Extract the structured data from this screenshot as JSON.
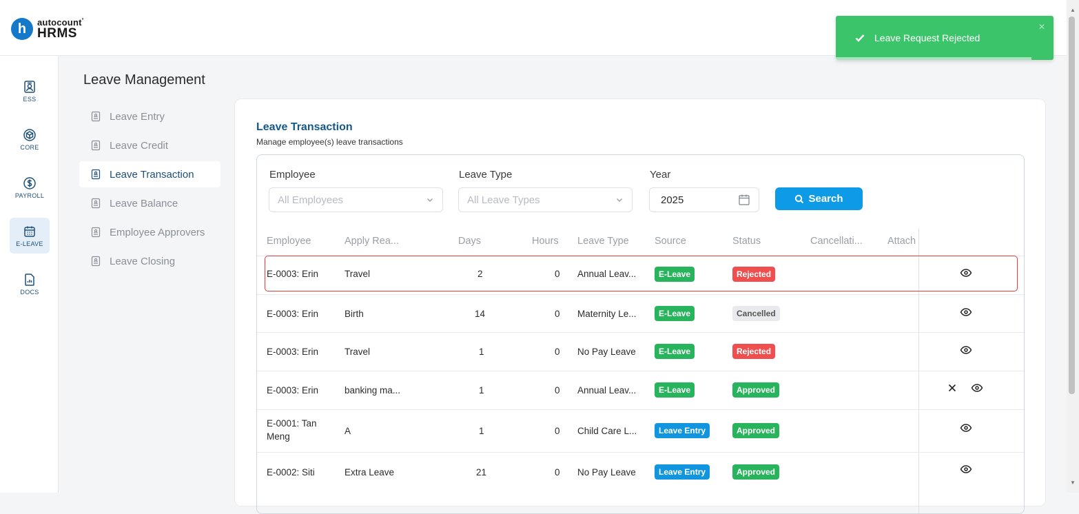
{
  "app": {
    "logo_letter": "h",
    "brand_top": "autocount",
    "brand_tm": "°",
    "brand_bottom": "HRMS",
    "brand_color": "#1479c9"
  },
  "rail": [
    {
      "label": "ESS",
      "icon": "id-card-icon"
    },
    {
      "label": "CORE",
      "icon": "cube-icon"
    },
    {
      "label": "PAYROLL",
      "icon": "dollar-icon"
    },
    {
      "label": "E-LEAVE",
      "icon": "calendar-icon",
      "active": true
    },
    {
      "label": "DOCS",
      "icon": "chart-document-icon"
    }
  ],
  "page": {
    "title": "Leave Management"
  },
  "subnav": [
    {
      "label": "Leave Entry"
    },
    {
      "label": "Leave Credit"
    },
    {
      "label": "Leave Transaction",
      "active": true
    },
    {
      "label": "Leave Balance"
    },
    {
      "label": "Employee Approvers"
    },
    {
      "label": "Leave Closing"
    }
  ],
  "card": {
    "title": "Leave Transaction",
    "subtitle": "Manage employee(s) leave transactions"
  },
  "filters": {
    "employee_label": "Employee",
    "employee_placeholder": "All Employees",
    "leave_type_label": "Leave Type",
    "leave_type_placeholder": "All Leave Types",
    "year_label": "Year",
    "year_value": "2025",
    "search_label": "Search"
  },
  "table": {
    "headers": [
      "Employee",
      "Apply Rea...",
      "Days",
      "Hours",
      "Leave Type",
      "Source",
      "Status",
      "Cancellati...",
      "Attach"
    ],
    "rows": [
      {
        "employee": "E-0003: Erin",
        "reason": "Travel",
        "days": "2",
        "hours": "0",
        "leave_type": "Annual Leav...",
        "source": "E-Leave",
        "status": "Rejected",
        "actions": [
          "view"
        ]
      },
      {
        "employee": "E-0003: Erin",
        "reason": "Birth",
        "days": "14",
        "hours": "0",
        "leave_type": "Maternity Le...",
        "source": "E-Leave",
        "status": "Cancelled",
        "actions": [
          "view"
        ]
      },
      {
        "employee": "E-0003: Erin",
        "reason": "Travel",
        "days": "1",
        "hours": "0",
        "leave_type": "No Pay Leave",
        "source": "E-Leave",
        "status": "Rejected",
        "actions": [
          "view"
        ]
      },
      {
        "employee": "E-0003: Erin",
        "reason": "banking ma...",
        "days": "1",
        "hours": "0",
        "leave_type": "Annual Leav...",
        "source": "E-Leave",
        "status": "Approved",
        "actions": [
          "cancel",
          "view"
        ]
      },
      {
        "employee": "E-0001: Tan Meng",
        "reason": "A",
        "days": "1",
        "hours": "0",
        "leave_type": "Child Care L...",
        "source": "Leave Entry",
        "status": "Approved",
        "actions": [
          "view"
        ]
      },
      {
        "employee": "E-0002: Siti",
        "reason": "Extra Leave",
        "days": "21",
        "hours": "0",
        "leave_type": "No Pay Leave",
        "source": "Leave Entry",
        "status": "Approved",
        "actions": [
          "view"
        ]
      }
    ]
  },
  "toast": {
    "message": "Leave Request Rejected",
    "close": "✕",
    "progress": 0.9,
    "color": "#3cc46a"
  },
  "colors": {
    "primary": "#15588c",
    "accent": "#0d9be8",
    "rejected": "#ef4f4f",
    "approved": "#27b45c"
  }
}
